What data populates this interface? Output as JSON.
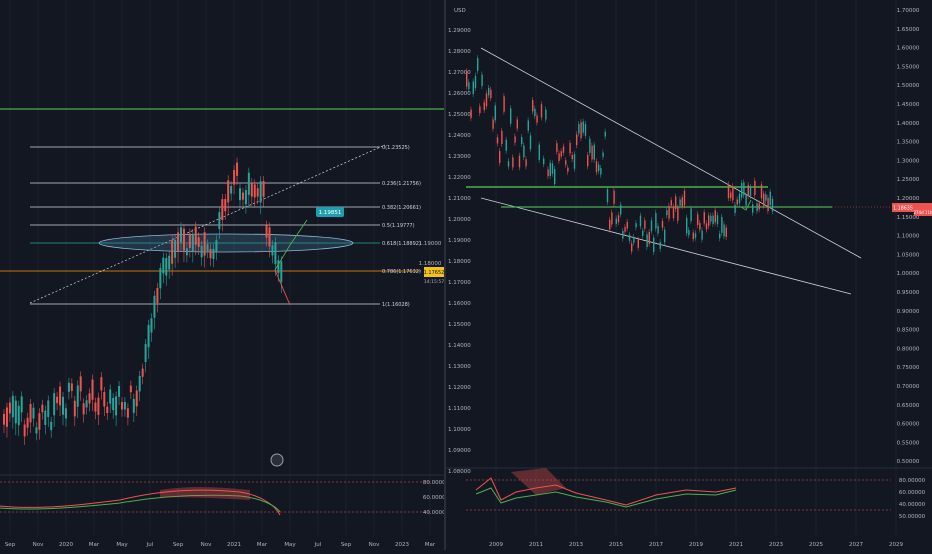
{
  "left_chart": {
    "price_axis": [
      "1.19000",
      "1.18000"
    ],
    "current_price_tag": "1.17652",
    "sub_price_tag": "14:15:57",
    "time_axis": [
      "Sep",
      "Nov",
      "2020",
      "Mar",
      "May",
      "Jul",
      "Sep",
      "Nov",
      "2021",
      "Mar",
      "May",
      "Jul",
      "Sep",
      "Nov",
      "2023",
      "Mar"
    ],
    "fib_levels": [
      {
        "label": "0(1.23525)"
      },
      {
        "label": "0.236(1.21756)"
      },
      {
        "label": "0.382(1.20661)"
      },
      {
        "label": "0.5(1.19777)"
      },
      {
        "label": "0.618(1.18892)"
      },
      {
        "label": "0.786(1.17632)"
      },
      {
        "label": "1(1.16028)"
      }
    ],
    "target_label": "1.19851",
    "colors": {
      "bull": "#26a69a",
      "bear": "#ef5350",
      "green_line": "#4caf50",
      "orange_line": "#ff9800",
      "target": "#1e9fb0",
      "fib_ellipse": "#4a90b8"
    }
  },
  "right_chart": {
    "currency_label": "USD",
    "price_axis": [
      "1.70000",
      "1.65000",
      "1.60000",
      "1.55000",
      "1.50000",
      "1.45000",
      "1.40000",
      "1.35000",
      "1.30000",
      "1.25000",
      "1.20000",
      "1.15000",
      "1.10000",
      "1.05000",
      "1.00000",
      "0.95000",
      "0.90000",
      "0.85000",
      "0.80000",
      "0.75000",
      "0.70000",
      "0.65000",
      "0.60000",
      "0.55000",
      "0.50000"
    ],
    "mid_axis": [
      "1.29000",
      "1.28000",
      "1.27000",
      "1.26000",
      "1.25000",
      "1.24000",
      "1.23000",
      "1.22000",
      "1.21000",
      "1.20000",
      "1.19000",
      "1.18000",
      "1.17000",
      "1.16000",
      "1.15000",
      "1.14000",
      "1.13000",
      "1.12000",
      "1.11000",
      "1.10000",
      "1.09000",
      "1.08000"
    ],
    "current_price_tag": "1.18635",
    "sub_price_tag": "274d 11h",
    "time_axis": [
      "2009",
      "2011",
      "2013",
      "2015",
      "2017",
      "2019",
      "2021",
      "2023",
      "2025",
      "2027",
      "2029"
    ],
    "indicator_axis": [
      "80.00000",
      "60.00000",
      "40.00000",
      "50.00000"
    ],
    "left_indicator_axis": [
      "80.00000",
      "60.00000",
      "40.00000"
    ]
  }
}
